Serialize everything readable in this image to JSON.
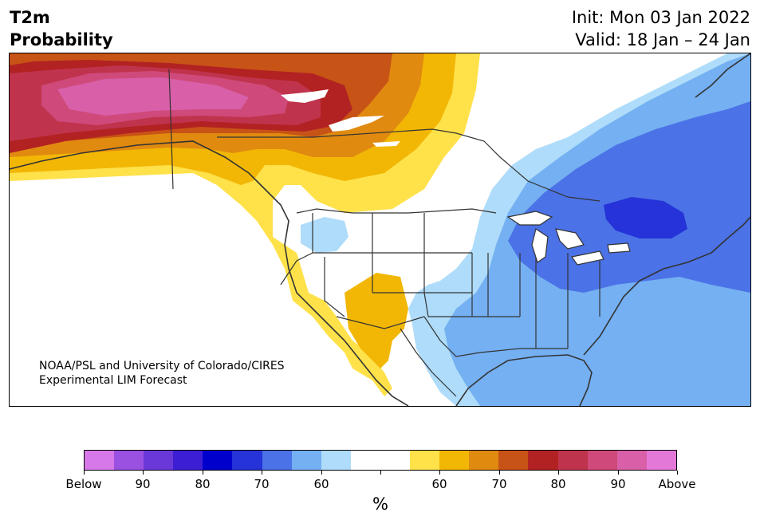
{
  "header": {
    "variable": "T2m",
    "quantity": "Probability",
    "init": "Init: Mon 03 Jan 2022",
    "valid": "Valid: 18 Jan – 24 Jan"
  },
  "credit": {
    "line1": "NOAA/PSL and University of Colorado/CIRES",
    "line2": "Experimental LIM Forecast"
  },
  "map": {
    "land_color": "#ffffff",
    "border_color": "#333333"
  },
  "colorbar": {
    "colors": [
      "#d678e8",
      "#9a50e0",
      "#6a38d8",
      "#3c1fd4",
      "#0000cc",
      "#2533d9",
      "#4b72e6",
      "#74b0f2",
      "#aedcfa",
      "#ffffff",
      "#ffffff",
      "#ffe14a",
      "#f2b705",
      "#e08a10",
      "#c85316",
      "#b22222",
      "#c0334d",
      "#cf4a7a",
      "#d85fa8",
      "#e478d8"
    ],
    "labels": [
      "Below",
      "90",
      "80",
      "70",
      "60",
      "",
      "60",
      "70",
      "80",
      "90",
      "Above"
    ],
    "unit": "%"
  }
}
